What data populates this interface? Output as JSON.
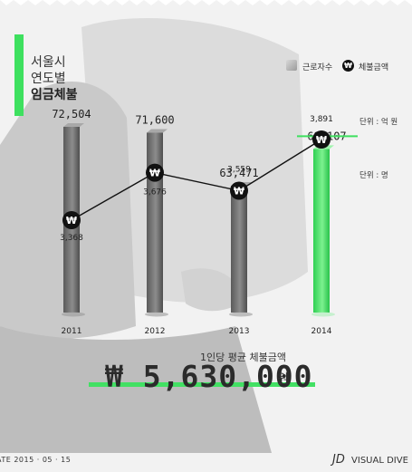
{
  "title": {
    "lines": [
      "서울시",
      "연도별",
      "임금체불"
    ]
  },
  "legend": {
    "workers_label": "근로자수",
    "amount_label": "체불금액",
    "coin_symbol": "₩"
  },
  "units": {
    "amount": "단위 : 억 원",
    "workers": "단위 : 명"
  },
  "average": {
    "label": "1인당 평균 체불금액",
    "value": "₩ 5,630,000",
    "unit": "원"
  },
  "footer": {
    "date": "ATE 2015 · 05 · 15",
    "brand_mark": "JD",
    "brand_name": "VISUAL DIVE"
  },
  "colors": {
    "highlight": "#3ee05f",
    "bar": "#7a7a7a",
    "coin": "#111111"
  },
  "chart_data": {
    "type": "bar",
    "categories": [
      "2011",
      "2012",
      "2013",
      "2014"
    ],
    "series": [
      {
        "name": "근로자수",
        "type": "bar",
        "values": [
          72504,
          71600,
          63471,
          69107
        ],
        "labels": [
          "72,504",
          "71,600",
          "63,471",
          "69,107"
        ]
      },
      {
        "name": "체불금액",
        "type": "line",
        "values": [
          3368,
          3676,
          3559,
          3891
        ],
        "labels": [
          "3,368",
          "3,676",
          "3,559",
          "3,891"
        ]
      }
    ],
    "highlight_category": "2014"
  }
}
